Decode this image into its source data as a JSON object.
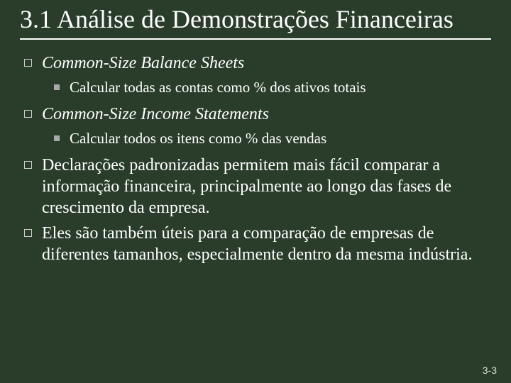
{
  "title": "3.1 Análise de Demonstrações Financeiras",
  "items": [
    {
      "text": "Common-Size Balance Sheets",
      "italic": true,
      "sub": "Calcular todas as contas como % dos ativos totais"
    },
    {
      "text": "Common-Size Income Statements",
      "italic": true,
      "sub": "Calcular todos os itens como % das vendas"
    },
    {
      "text": "Declarações padronizadas permitem mais fácil comparar a informação financeira, principalmente ao longo das fases de crescimento da empresa.",
      "italic": false
    },
    {
      "text": "Eles são também úteis para a comparação de empresas de diferentes tamanhos, especialmente dentro da mesma indústria.",
      "italic": false
    }
  ],
  "pageNumber": "3-3"
}
